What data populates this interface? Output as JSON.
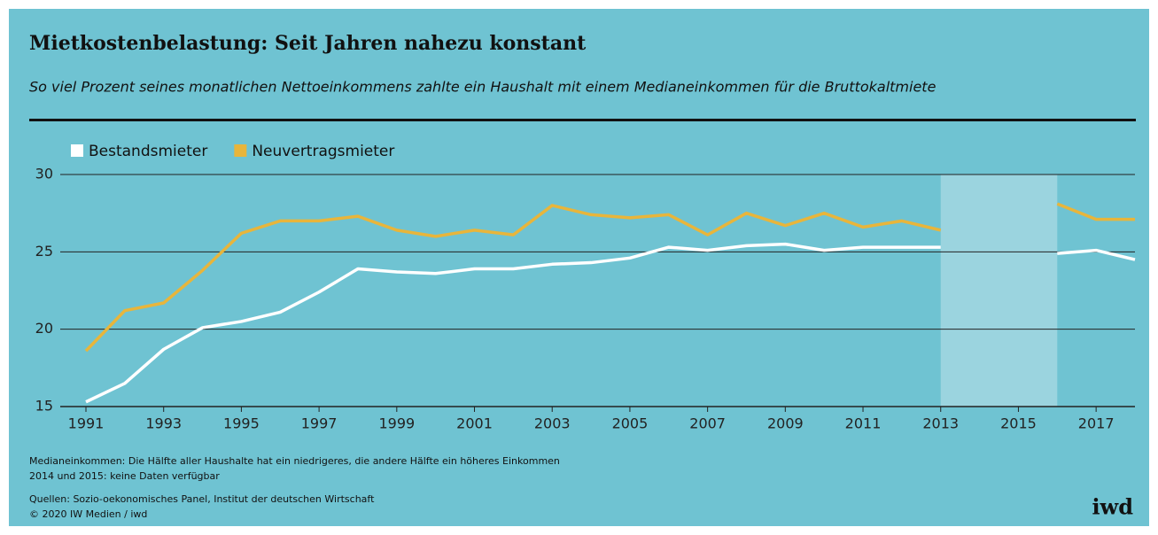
{
  "chart_data": {
    "type": "line",
    "title": "Mietkostenbelastung: Seit Jahren nahezu konstant",
    "subtitle": "So viel Prozent seines monatlichen Nettoeinkommens zahlte ein Haushalt mit einem Medianeinkommen für die Bruttokaltmiete",
    "x": [
      1991,
      1992,
      1993,
      1994,
      1995,
      1996,
      1997,
      1998,
      1999,
      2000,
      2001,
      2002,
      2003,
      2004,
      2005,
      2006,
      2007,
      2008,
      2009,
      2010,
      2011,
      2012,
      2013,
      2014,
      2015,
      2016,
      2017,
      2018
    ],
    "series": [
      {
        "name": "Bestandsmieter",
        "color": "#ffffff",
        "values": [
          15.3,
          16.5,
          18.7,
          20.1,
          20.5,
          21.1,
          22.4,
          23.9,
          23.7,
          23.6,
          23.9,
          23.9,
          24.2,
          24.3,
          24.6,
          25.3,
          25.1,
          25.4,
          25.5,
          25.1,
          25.3,
          25.3,
          25.3,
          null,
          null,
          24.9,
          25.1,
          24.5
        ]
      },
      {
        "name": "Neuvertragsmieter",
        "color": "#e8b53b",
        "values": [
          18.6,
          21.2,
          21.7,
          23.8,
          26.2,
          27.0,
          27.0,
          27.3,
          26.4,
          26.0,
          26.4,
          26.1,
          28.0,
          27.4,
          27.2,
          27.4,
          26.1,
          27.5,
          26.7,
          27.5,
          26.6,
          27.0,
          26.4,
          null,
          null,
          28.1,
          27.1,
          27.1
        ]
      }
    ],
    "xlim": [
      1991,
      2018
    ],
    "xticks": [
      1991,
      1993,
      1995,
      1997,
      1999,
      2001,
      2003,
      2005,
      2007,
      2009,
      2011,
      2013,
      2015,
      2017
    ],
    "ylim": [
      15,
      30
    ],
    "yticks": [
      15,
      20,
      25,
      30
    ],
    "grid": true,
    "highlight": [
      2013,
      2016
    ],
    "notes": [
      "Medianeinkommen: Die Hälfte aller Haushalte hat ein niedrigeres, die andere Hälfte ein höheres Einkommen",
      "2014 und 2015: keine Daten verfügbar"
    ],
    "source": "Quellen: Sozio-oekonomisches Panel, Institut der deutschen Wirtschaft",
    "copyright": "© 2020 IW Medien / iwd",
    "logo": "iwd"
  }
}
